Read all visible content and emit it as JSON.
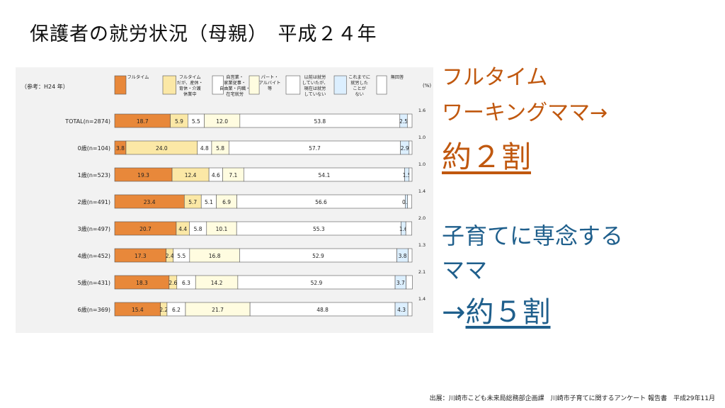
{
  "slide": {
    "title": "保護者の就労状況（母親）　平成２４年",
    "callout_fulltime_line1": "フルタイム",
    "callout_fulltime_line2": "ワーキングママ→",
    "callout_fulltime_value": "約２割",
    "callout_home_line1": "子育てに専念する",
    "callout_home_line2": "ママ",
    "callout_home_arrow": "→",
    "callout_home_value": "約５割",
    "source": "出展：川崎市こども未来局総務部企画課　川崎市子育てに関するアンケート 報告書　平成29年11月"
  },
  "colors": {
    "fulltime": "#e8883a",
    "fulltime_leave": "#fbe8a6",
    "self_employed": "#ffffff",
    "parttime": "#fffce0",
    "previously_worked": "#ffffff",
    "never_worked": "#dcefff",
    "no_answer": "#ffffff"
  },
  "chart_data": {
    "type": "bar",
    "orientation": "horizontal",
    "stacked": true,
    "reference_label": "（参考：H24 年）",
    "unit_label": "(%)",
    "xlim": [
      0,
      100
    ],
    "categories": [
      "TOTAL(n=2874)",
      "0歳(n=104)",
      "1歳(n=523)",
      "2歳(n=491)",
      "3歳(n=497)",
      "4歳(n=452)",
      "5歳(n=431)",
      "6歳(n=369)"
    ],
    "legend": [
      "フルタイム",
      "フルタイムだが、産休・育休・介護休業中",
      "自営業・家業従事・自由業・内職・在宅就労",
      "パート・アルバイト等",
      "以前は就労していたが、現在は就労していない",
      "これまでに就労したことがない",
      "無回答"
    ],
    "series": [
      {
        "name": "フルタイム",
        "values": [
          18.7,
          3.8,
          19.3,
          23.4,
          20.7,
          17.3,
          18.3,
          15.4
        ]
      },
      {
        "name": "フルタイムだが、産休・育休・介護休業中",
        "values": [
          5.9,
          24.0,
          12.4,
          5.7,
          4.4,
          2.4,
          2.6,
          2.2
        ]
      },
      {
        "name": "自営業・家業従事・自由業・内職・在宅就労",
        "values": [
          5.5,
          4.8,
          4.6,
          5.1,
          5.8,
          5.5,
          6.3,
          6.2
        ]
      },
      {
        "name": "パート・アルバイト等",
        "values": [
          12.0,
          5.8,
          7.1,
          6.9,
          10.1,
          16.8,
          14.2,
          21.7
        ]
      },
      {
        "name": "以前は就労していたが、現在は就労していない",
        "values": [
          53.8,
          57.7,
          54.1,
          56.6,
          55.3,
          52.9,
          52.9,
          48.8
        ]
      },
      {
        "name": "これまでに就労したことがない",
        "values": [
          2.5,
          2.9,
          1.5,
          0.8,
          1.6,
          3.8,
          3.7,
          4.3
        ]
      },
      {
        "name": "無回答",
        "values": [
          1.6,
          1.0,
          1.0,
          1.4,
          2.0,
          1.3,
          2.1,
          1.4
        ]
      }
    ]
  }
}
